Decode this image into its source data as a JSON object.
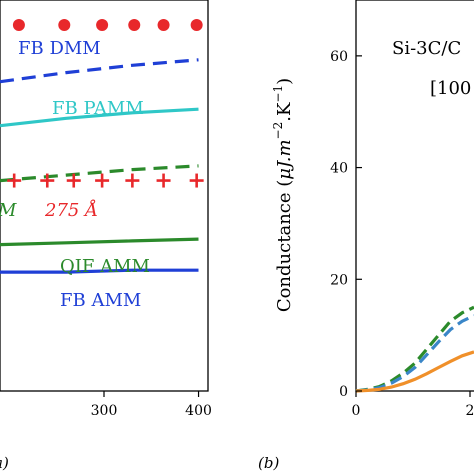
{
  "chart_data": [
    {
      "type": "line",
      "panel_label": "a)",
      "xlim": [
        190,
        410
      ],
      "ylim": [
        0,
        100
      ],
      "x_ticks": [
        300,
        400
      ],
      "series": [
        {
          "name": "FB DMM",
          "style": "dots",
          "color": "#e8282b",
          "x": [
            210,
            258,
            298,
            332,
            363,
            398
          ],
          "y": [
            100,
            100,
            100,
            100,
            100,
            100
          ]
        },
        {
          "name": "FB DMM",
          "style": "dashed",
          "color": "#1f3fd6",
          "x": [
            190,
            260,
            330,
            400
          ],
          "y": [
            84.5,
            87,
            89,
            90.5
          ]
        },
        {
          "name": "FB PAMM",
          "style": "solid",
          "color": "#2fc7c7",
          "x": [
            190,
            260,
            330,
            400
          ],
          "y": [
            72.5,
            74.5,
            76,
            77
          ]
        },
        {
          "name": "",
          "style": "dashed",
          "color": "#2b8a2b",
          "x": [
            190,
            260,
            330,
            400
          ],
          "y": [
            57.5,
            59,
            60.5,
            61.5
          ]
        },
        {
          "name": "275 Å",
          "style": "plus",
          "color": "#e8282b",
          "x": [
            205,
            240,
            268,
            298,
            330,
            363,
            398
          ],
          "y": [
            57.5,
            57.5,
            57.5,
            57.5,
            57.5,
            57.5,
            57.5
          ]
        },
        {
          "name": "QIF AMM",
          "style": "solid",
          "color": "#2b8a2b",
          "x": [
            190,
            260,
            330,
            400
          ],
          "y": [
            40,
            40.5,
            41,
            41.5
          ]
        },
        {
          "name": "FB AMM",
          "style": "solid",
          "color": "#1f3fd6",
          "x": [
            190,
            260,
            330,
            400
          ],
          "y": [
            32.5,
            32.5,
            33,
            33
          ]
        }
      ],
      "annotations": [
        {
          "text": "FB DMM",
          "color": "#1f3fd6"
        },
        {
          "text": "FB PAMM",
          "color": "#2fc7c7"
        },
        {
          "text": "M",
          "color": "#2b8a2b"
        },
        {
          "text": "275 Å",
          "color": "#e8282b"
        },
        {
          "text": "QIF AMM",
          "color": "#2b8a2b"
        },
        {
          "text": "FB AMM",
          "color": "#1f3fd6"
        }
      ]
    },
    {
      "type": "line",
      "panel_label": "(b)",
      "ylabel_text": "Conductance (",
      "ylabel_unit": "μJ.m",
      "ylabel_exp1": "−2",
      "ylabel_mid": ".K",
      "ylabel_exp2": "−1",
      "ylabel_close": ")",
      "ylim": [
        0,
        70
      ],
      "xlim": [
        0,
        1
      ],
      "y_ticks": [
        "0",
        "20",
        "40",
        "60"
      ],
      "x_ticks": [
        "0",
        "2"
      ],
      "text_line1": "Si-3C/C",
      "text_line2": "[100",
      "series": [
        {
          "name": "",
          "style": "dashed",
          "color": "#2b8a2b",
          "x": [
            0,
            0.1,
            0.2,
            0.3,
            0.4,
            0.5,
            0.6,
            0.7,
            0.8,
            0.9,
            1.0
          ],
          "y": [
            0,
            0.3,
            0.8,
            1.8,
            3.2,
            5,
            7.5,
            10,
            12.5,
            14,
            15
          ]
        },
        {
          "name": "",
          "style": "dashed",
          "color": "#3a86c8",
          "x": [
            0,
            0.1,
            0.2,
            0.3,
            0.4,
            0.5,
            0.6,
            0.7,
            0.8,
            0.9,
            1.0
          ],
          "y": [
            0,
            0.2,
            0.6,
            1.4,
            2.6,
            4.2,
            6.5,
            8.8,
            11,
            12.5,
            13.5
          ]
        },
        {
          "name": "",
          "style": "solid",
          "color": "#f0902a",
          "x": [
            0,
            0.1,
            0.2,
            0.3,
            0.4,
            0.5,
            0.6,
            0.7,
            0.8,
            0.9,
            1.0
          ],
          "y": [
            0,
            0.1,
            0.3,
            0.7,
            1.3,
            2.1,
            3.1,
            4.2,
            5.3,
            6.3,
            7
          ]
        }
      ]
    }
  ]
}
